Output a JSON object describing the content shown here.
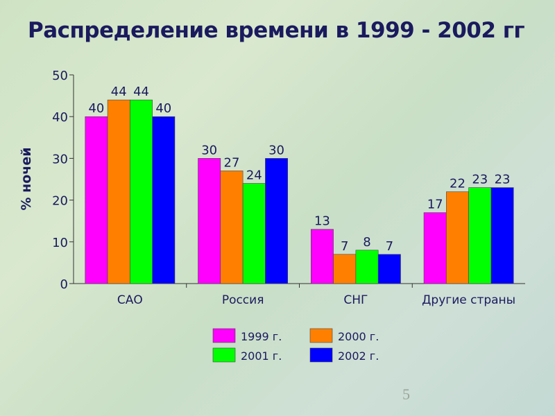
{
  "title": "Распределение времени в  1999 - 2002 гг",
  "page_number": "5",
  "chart_data": {
    "type": "bar",
    "title": "Распределение времени в  1999 - 2002 гг",
    "xlabel": "",
    "ylabel": "% ночей",
    "ylim": [
      0,
      50
    ],
    "yticks": [
      0,
      10,
      20,
      30,
      40,
      50
    ],
    "grid": false,
    "legend_placement": "bottom",
    "categories": [
      "САО",
      "Россия",
      "СНГ",
      "Другие страны"
    ],
    "series": [
      {
        "name": "1999 г.",
        "color": "#ff00ff",
        "values": [
          40,
          30,
          13,
          17
        ]
      },
      {
        "name": "2000 г.",
        "color": "#ff8000",
        "values": [
          44,
          27,
          7,
          22
        ]
      },
      {
        "name": "2001 г.",
        "color": "#00ff00",
        "values": [
          44,
          24,
          8,
          23
        ]
      },
      {
        "name": "2002 г.",
        "color": "#0000ff",
        "values": [
          40,
          30,
          7,
          23
        ]
      }
    ],
    "text_color": "#1a1a5e"
  }
}
